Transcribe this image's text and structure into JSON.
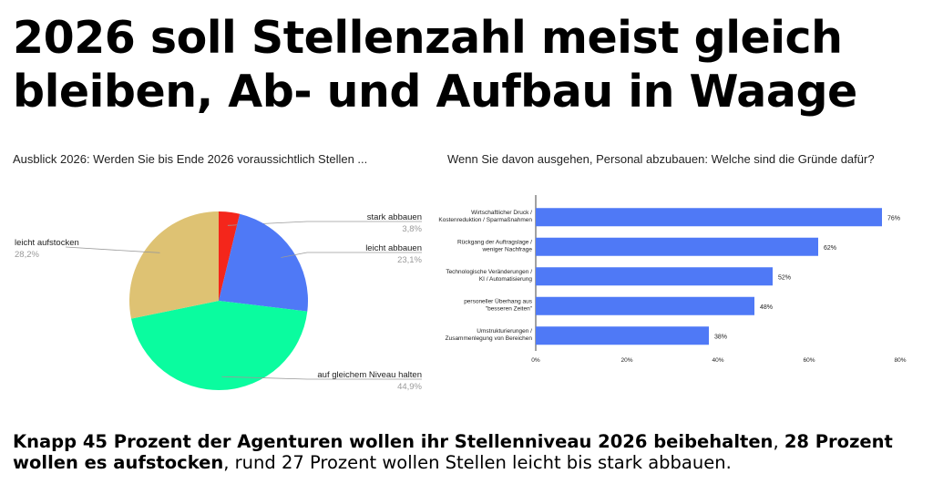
{
  "headline": {
    "line1": "2026 soll Stellenzahl meist gleich",
    "line2": "bleiben, Ab- und Aufbau in Waage"
  },
  "caption": {
    "part1_bold": "Knapp 45 Prozent der Agenturen wollen ihr Stellenniveau 2026 beibehalten",
    "part2": ", ",
    "part3_bold": "28 Prozent wollen es aufstocken",
    "part4": ", rund 27 Prozent wollen Stellen leicht bis stark abbauen."
  },
  "colors": {
    "red": "#f4261b",
    "blue": "#4f79f6",
    "green": "#0afc9f",
    "gold": "#dec273",
    "bar": "#4f79f6"
  },
  "chart_data": [
    {
      "type": "pie",
      "title": "Ausblick 2026: Werden Sie bis Ende 2026 voraussichtlich Stellen ...",
      "slices": [
        {
          "label": "stark abbauen",
          "value": 3.8,
          "display": "3,8%",
          "color": "#f4261b"
        },
        {
          "label": "leicht abbauen",
          "value": 23.1,
          "display": "23,1%",
          "color": "#4f79f6"
        },
        {
          "label": "auf gleichem Niveau halten",
          "value": 44.9,
          "display": "44,9%",
          "color": "#0afc9f"
        },
        {
          "label": "leicht aufstocken",
          "value": 28.2,
          "display": "28,2%",
          "color": "#dec273"
        }
      ]
    },
    {
      "type": "bar",
      "orientation": "horizontal",
      "title": "Wenn Sie davon ausgehen, Personal abzubauen:  Welche sind die Gründe dafür?",
      "categories": [
        [
          "Wirtschaftlicher Druck /",
          "Kostenreduktion / Sparmaßnahmen"
        ],
        [
          "Rückgang der Auftragslage /",
          "weniger Nachfrage"
        ],
        [
          "Technologische Veränderungen /",
          "KI / Automatisierung"
        ],
        [
          "personeller Überhang aus",
          "\"besseren Zeiten\""
        ],
        [
          "Umstrukturierungen /",
          "Zusammenlegung von Bereichen"
        ]
      ],
      "values": [
        76,
        62,
        52,
        48,
        38
      ],
      "value_labels": [
        "76%",
        "62%",
        "52%",
        "48%",
        "38%"
      ],
      "xlim": [
        0,
        80
      ],
      "xticks": [
        0,
        20,
        40,
        60,
        80
      ],
      "xtick_labels": [
        "0%",
        "20%",
        "40%",
        "60%",
        "80%"
      ]
    }
  ]
}
